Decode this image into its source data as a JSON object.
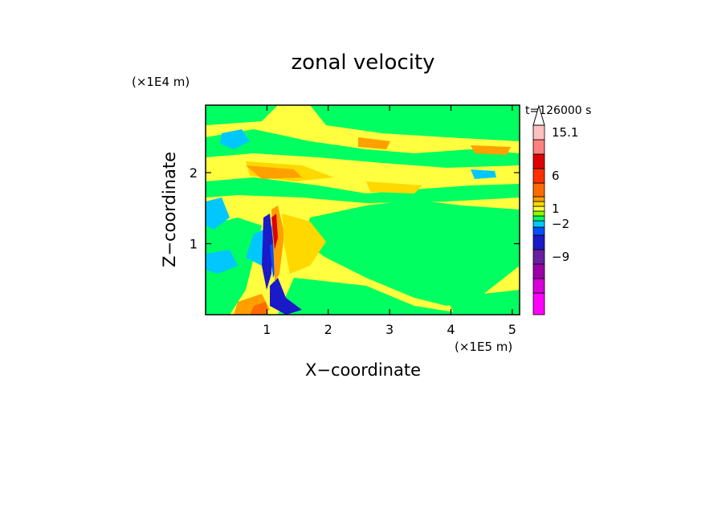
{
  "chart_data": {
    "type": "heatmap",
    "title": "zonal velocity",
    "xlabel": "X−coordinate",
    "ylabel": "Z−coordinate",
    "x_scale_label": "(×1E5 m)",
    "y_scale_label": "(×1E4 m)",
    "time_label": "t=126000 s",
    "xlim": [
      0,
      5.12
    ],
    "ylim": [
      0,
      2.95
    ],
    "x_ticks": [
      {
        "value": 1,
        "label": "1"
      },
      {
        "value": 2,
        "label": "2"
      },
      {
        "value": 3,
        "label": "3"
      },
      {
        "value": 4,
        "label": "4"
      },
      {
        "value": 5,
        "label": "5"
      }
    ],
    "y_ticks": [
      {
        "value": 1,
        "label": "1"
      },
      {
        "value": 2,
        "label": "2"
      }
    ],
    "colorbar": {
      "colors": [
        "#ff00ff",
        "#d800d8",
        "#9b00a8",
        "#6a1fa0",
        "#1a1ac8",
        "#0050ff",
        "#00c8ff",
        "#00ff60",
        "#8cff00",
        "#ffff40",
        "#ffd800",
        "#ffa000",
        "#ff6a00",
        "#ff3000",
        "#e00000",
        "#ff8080",
        "#ffc0c0"
      ],
      "labels": [
        {
          "text": "15.1",
          "level_index": 16
        },
        {
          "text": "6",
          "level_index": 13
        },
        {
          "text": "1",
          "level_index": 9
        },
        {
          "text": "−2",
          "level_index": 6
        },
        {
          "text": "−9",
          "level_index": 3
        }
      ]
    }
  }
}
